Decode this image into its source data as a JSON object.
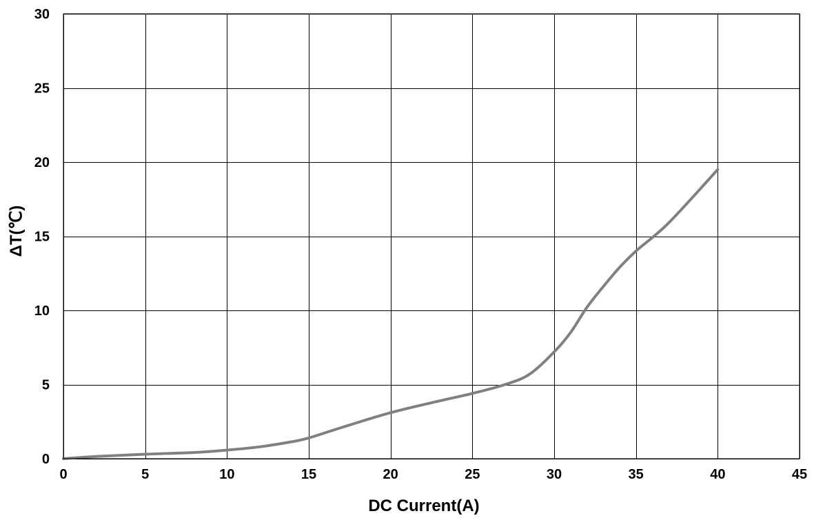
{
  "chart_data": {
    "type": "line",
    "title": "",
    "xlabel": "DC Current(A)",
    "ylabel": "ΔT(℃)",
    "xlim": [
      0,
      45
    ],
    "ylim": [
      0,
      30
    ],
    "xticks": [
      0,
      5,
      10,
      15,
      20,
      25,
      30,
      35,
      40,
      45
    ],
    "yticks": [
      0,
      5,
      10,
      15,
      20,
      25,
      30
    ],
    "grid": true,
    "legend": "none",
    "series": [
      {
        "color": "#808080",
        "x": [
          0,
          2,
          5,
          8,
          10,
          12,
          14,
          15,
          17,
          20,
          23,
          25,
          27,
          28.5,
          30,
          31,
          32,
          33,
          34,
          35,
          37,
          40
        ],
        "y": [
          0,
          0.15,
          0.3,
          0.42,
          0.58,
          0.8,
          1.15,
          1.4,
          2.1,
          3.1,
          3.9,
          4.4,
          5.0,
          5.7,
          7.2,
          8.5,
          10.2,
          11.6,
          12.9,
          14.0,
          15.9,
          19.5
        ]
      }
    ]
  }
}
